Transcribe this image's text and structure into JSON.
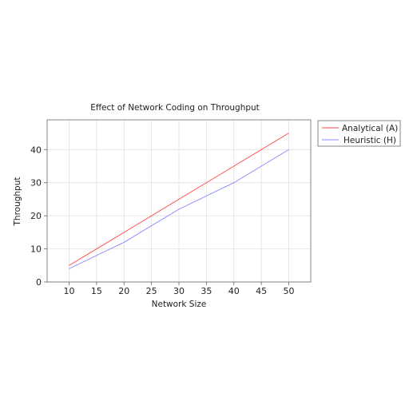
{
  "chart_data": {
    "type": "line",
    "title": "Effect of Network Coding on Throughput",
    "xlabel": "Network Size",
    "ylabel": "Throughput",
    "xlim": [
      6,
      54
    ],
    "ylim": [
      0,
      49
    ],
    "xticks": [
      10,
      15,
      20,
      25,
      30,
      35,
      40,
      45,
      50
    ],
    "yticks": [
      0,
      10,
      20,
      30,
      40
    ],
    "grid": true,
    "legend_position": "outside-right-top",
    "series": [
      {
        "name": "Analytical (A)",
        "color": "#ff4444",
        "x": [
          10,
          20,
          30,
          40,
          50
        ],
        "y": [
          5,
          15,
          25,
          35,
          45
        ]
      },
      {
        "name": "Heuristic (H)",
        "color": "#8888ff",
        "x": [
          10,
          20,
          30,
          40,
          50
        ],
        "y": [
          4,
          12,
          22,
          30,
          40
        ]
      }
    ]
  }
}
